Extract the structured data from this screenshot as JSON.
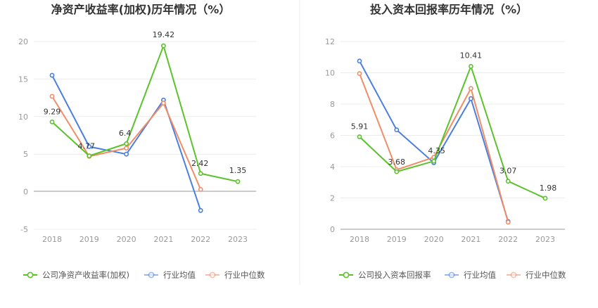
{
  "charts": [
    {
      "id": "roe",
      "title": "净资产收益率(加权)历年情况（%）",
      "chart_type": "line",
      "y_axis": {
        "ticks": [
          20,
          15,
          10,
          5,
          0,
          -5
        ],
        "range": [
          -5,
          20
        ]
      },
      "categories": [
        "2018",
        "2019",
        "2020",
        "2021",
        "2022",
        "2023"
      ],
      "series": [
        {
          "name": "公司净资产收益率(加权)",
          "color": "#5bc22c",
          "values": [
            9.29,
            4.77,
            6.4,
            19.42,
            2.42,
            1.35
          ],
          "labels": [
            "9.29",
            "4.77",
            "6.4",
            "19.42",
            "2.42",
            "1.35"
          ]
        },
        {
          "name": "行业均值",
          "color": "#4a7fe0",
          "values": [
            15.5,
            6.0,
            5.0,
            12.2,
            -2.5,
            null
          ]
        },
        {
          "name": "行业中位数",
          "color": "#f08c66",
          "values": [
            12.7,
            4.7,
            5.8,
            11.8,
            0.3,
            null
          ]
        }
      ]
    },
    {
      "id": "roic",
      "title": "投入资本回报率历年情况（%）",
      "chart_type": "line",
      "y_axis": {
        "ticks": [
          12,
          10,
          8,
          6,
          4,
          2,
          0
        ],
        "range": [
          0,
          12
        ]
      },
      "categories": [
        "2018",
        "2019",
        "2020",
        "2021",
        "2022",
        "2023"
      ],
      "series": [
        {
          "name": "公司投入资本回报率",
          "color": "#5bc22c",
          "values": [
            5.91,
            3.68,
            4.35,
            10.41,
            3.07,
            1.98
          ],
          "labels": [
            "5.91",
            "3.68",
            "4.35",
            "10.41",
            "3.07",
            "1.98"
          ]
        },
        {
          "name": "行业均值",
          "color": "#4a7fe0",
          "values": [
            10.75,
            6.35,
            4.25,
            8.35,
            0.5,
            null
          ]
        },
        {
          "name": "行业中位数",
          "color": "#f08c66",
          "values": [
            9.95,
            3.8,
            4.6,
            9.0,
            0.45,
            null
          ]
        }
      ]
    }
  ],
  "chart_data": [
    {
      "type": "line",
      "title": "净资产收益率(加权)历年情况（%）",
      "x": [
        "2018",
        "2019",
        "2020",
        "2021",
        "2022",
        "2023"
      ],
      "ylim": [
        -5,
        20
      ],
      "series": [
        {
          "name": "公司净资产收益率(加权)",
          "values": [
            9.29,
            4.77,
            6.4,
            19.42,
            2.42,
            1.35
          ]
        },
        {
          "name": "行业均值",
          "values": [
            15.5,
            6.0,
            5.0,
            12.2,
            -2.5,
            null
          ]
        },
        {
          "name": "行业中位数",
          "values": [
            12.7,
            4.7,
            5.8,
            11.8,
            0.3,
            null
          ]
        }
      ],
      "legend": "bottom"
    },
    {
      "type": "line",
      "title": "投入资本回报率历年情况（%）",
      "x": [
        "2018",
        "2019",
        "2020",
        "2021",
        "2022",
        "2023"
      ],
      "ylim": [
        0,
        12
      ],
      "series": [
        {
          "name": "公司投入资本回报率",
          "values": [
            5.91,
            3.68,
            4.35,
            10.41,
            3.07,
            1.98
          ]
        },
        {
          "name": "行业均值",
          "values": [
            10.75,
            6.35,
            4.25,
            8.35,
            0.5,
            null
          ]
        },
        {
          "name": "行业中位数",
          "values": [
            9.95,
            3.8,
            4.6,
            9.0,
            0.45,
            null
          ]
        }
      ],
      "legend": "bottom"
    }
  ]
}
